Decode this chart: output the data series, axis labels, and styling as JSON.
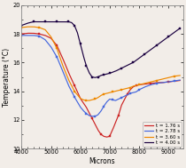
{
  "title": "",
  "xlabel": "Microns",
  "ylabel": "Temperature (°C)",
  "xlim": [
    4000,
    9500
  ],
  "ylim": [
    10,
    20
  ],
  "yticks": [
    10,
    12,
    14,
    16,
    18,
    20
  ],
  "xticks": [
    4000,
    5000,
    6000,
    7000,
    8000,
    9000
  ],
  "background_color": "#f2ede8",
  "series": [
    {
      "label": "t = 1.76 s",
      "color": "#cc2222",
      "marker": "s",
      "data_x": [
        4000,
        4200,
        4400,
        4600,
        4800,
        5000,
        5200,
        5400,
        5600,
        5800,
        6000,
        6200,
        6400,
        6500,
        6600,
        6700,
        6800,
        6900,
        7000,
        7100,
        7200,
        7300,
        7400,
        7500,
        7600,
        7700,
        7800,
        7900,
        8000,
        8200,
        8400,
        8600,
        8800,
        9000,
        9200,
        9400
      ],
      "data_y": [
        18.0,
        18.05,
        18.05,
        18.0,
        17.9,
        17.7,
        17.2,
        16.3,
        15.3,
        14.4,
        13.5,
        12.9,
        12.1,
        11.7,
        11.3,
        11.0,
        10.85,
        10.8,
        10.85,
        11.3,
        11.8,
        12.3,
        13.0,
        13.4,
        13.8,
        14.1,
        14.3,
        14.4,
        14.45,
        14.5,
        14.55,
        14.6,
        14.6,
        14.65,
        14.7,
        14.75
      ]
    },
    {
      "label": "t = 2.78 s",
      "color": "#4466dd",
      "marker": "s",
      "data_x": [
        4000,
        4200,
        4400,
        4600,
        4800,
        5000,
        5200,
        5400,
        5600,
        5800,
        6000,
        6100,
        6200,
        6300,
        6400,
        6500,
        6600,
        6700,
        6800,
        6900,
        7000,
        7100,
        7200,
        7300,
        7400,
        7500,
        7600,
        7700,
        7800,
        7900,
        8000,
        8200,
        8400,
        8600,
        8800,
        9000,
        9200,
        9400
      ],
      "data_y": [
        17.9,
        17.9,
        17.9,
        17.85,
        17.6,
        17.1,
        16.4,
        15.4,
        14.4,
        13.6,
        12.9,
        12.65,
        12.45,
        12.3,
        12.25,
        12.25,
        12.35,
        12.6,
        12.95,
        13.25,
        13.45,
        13.4,
        13.35,
        13.45,
        13.55,
        13.65,
        13.75,
        13.85,
        13.9,
        13.95,
        14.1,
        14.3,
        14.45,
        14.55,
        14.6,
        14.65,
        14.72,
        14.78
      ]
    },
    {
      "label": "t = 3.60 s",
      "color": "#ee8800",
      "marker": "s",
      "data_x": [
        4000,
        4200,
        4400,
        4600,
        4800,
        5000,
        5200,
        5400,
        5600,
        5800,
        6000,
        6100,
        6200,
        6300,
        6400,
        6500,
        6600,
        6700,
        6800,
        6900,
        7000,
        7100,
        7200,
        7300,
        7400,
        7500,
        7600,
        7700,
        7800,
        7900,
        8000,
        8200,
        8400,
        8600,
        8800,
        9000,
        9200,
        9400
      ],
      "data_y": [
        18.45,
        18.5,
        18.5,
        18.45,
        18.3,
        17.8,
        17.0,
        15.8,
        14.8,
        14.0,
        13.5,
        13.4,
        13.35,
        13.35,
        13.4,
        13.45,
        13.55,
        13.7,
        13.8,
        13.85,
        13.9,
        13.95,
        14.0,
        14.05,
        14.1,
        14.15,
        14.2,
        14.25,
        14.35,
        14.4,
        14.45,
        14.55,
        14.65,
        14.75,
        14.85,
        14.95,
        15.05,
        15.1
      ]
    },
    {
      "label": "t = 4.00 s",
      "color": "#1a0040",
      "marker": "s",
      "data_x": [
        4000,
        4200,
        4400,
        4600,
        4800,
        5000,
        5200,
        5400,
        5600,
        5700,
        5800,
        5900,
        6000,
        6100,
        6200,
        6300,
        6400,
        6500,
        6600,
        6700,
        6800,
        6900,
        7000,
        7200,
        7400,
        7600,
        7800,
        8000,
        8200,
        8400,
        8600,
        8800,
        9000,
        9200,
        9400
      ],
      "data_y": [
        18.6,
        18.75,
        18.85,
        18.85,
        18.85,
        18.85,
        18.85,
        18.85,
        18.85,
        18.8,
        18.6,
        18.1,
        17.3,
        16.5,
        15.8,
        15.3,
        15.0,
        14.95,
        15.0,
        15.1,
        15.15,
        15.2,
        15.25,
        15.4,
        15.6,
        15.8,
        16.0,
        16.3,
        16.6,
        16.9,
        17.2,
        17.5,
        17.8,
        18.1,
        18.4
      ]
    }
  ]
}
